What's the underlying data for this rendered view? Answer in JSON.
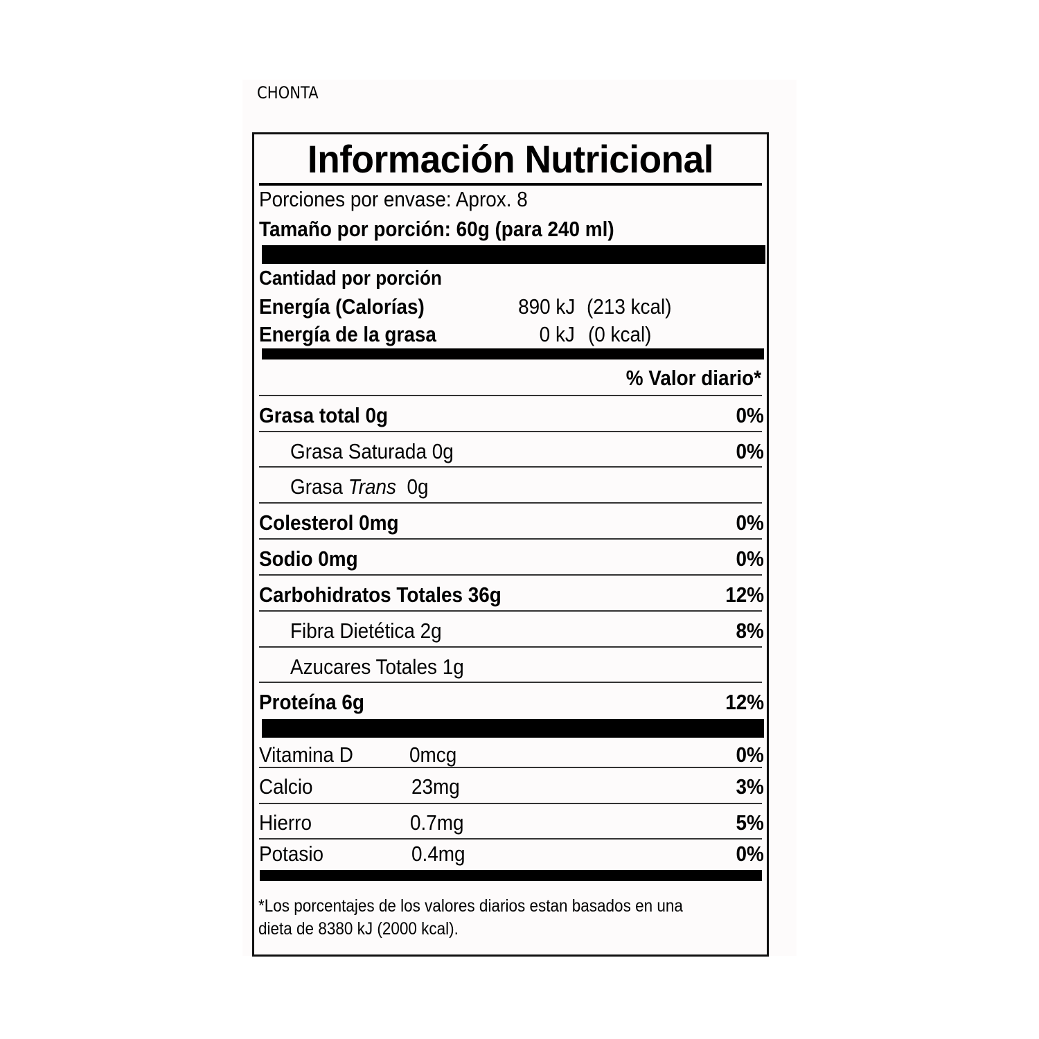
{
  "brand": "CHONTA",
  "title": "Información Nutricional",
  "servings_per_container": "Porciones por envase: Aprox. 8",
  "serving_size": "Tamaño por porción: 60g (para 240 ml)",
  "amount_per_serving": "Cantidad por porción",
  "energy": {
    "label": "Energía (Calorías)",
    "kj": "890 kJ",
    "kcal": "(213 kcal)"
  },
  "energy_fat": {
    "label": "Energía de la grasa",
    "kj": "0 kJ",
    "kcal": "(0 kcal)"
  },
  "dv_header": "% Valor diario*",
  "nutrients": [
    {
      "label": "Grasa total 0g",
      "dv": "0%"
    },
    {
      "label": "Grasa Saturada 0g",
      "dv": "0%"
    },
    {
      "label_pre": "Grasa ",
      "label_italic": "Trans",
      "label_post": "  0g",
      "dv": ""
    },
    {
      "label": "Colesterol 0mg",
      "dv": "0%"
    },
    {
      "label": "Sodio 0mg",
      "dv": "0%"
    },
    {
      "label": "Carbohidratos Totales 36g",
      "dv": "12%"
    },
    {
      "label": "Fibra Dietética 2g",
      "dv": "8%"
    },
    {
      "label": "Azucares Totales 1g",
      "dv": ""
    },
    {
      "label": "Proteína 6g",
      "dv": "12%"
    }
  ],
  "vitamins": [
    {
      "label": "Vitamina D",
      "amount": "0mcg",
      "dv": "0%"
    },
    {
      "label": "Calcio",
      "amount": "23mg",
      "dv": "3%"
    },
    {
      "label": "Hierro",
      "amount": "0.7mg",
      "dv": "5%"
    },
    {
      "label": "Potasio",
      "amount": "0.4mg",
      "dv": "0%"
    }
  ],
  "footnote_line1": "*Los porcentajes de los valores diarios estan basados en una",
  "footnote_line2": "dieta de 8380 kJ (2000 kcal)."
}
